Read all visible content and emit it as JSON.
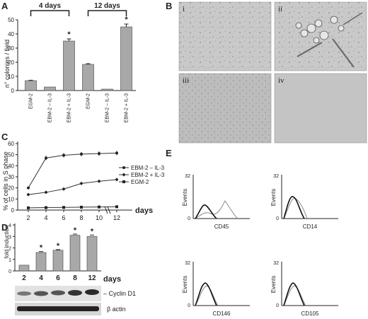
{
  "panels": {
    "A": "A",
    "B": "B",
    "C": "C",
    "D": "D",
    "E": "E"
  },
  "chart_data": [
    {
      "panel": "A",
      "type": "bar",
      "groups": [
        {
          "label": "4 days"
        },
        {
          "label": "12 days"
        }
      ],
      "categories": [
        "EGM-2",
        "EBM-2 – IL-3",
        "EBM-2 + IL-3",
        "EGM-2",
        "EBM-2 – IL-3",
        "EBM-2 + IL-3"
      ],
      "values": [
        7,
        2.5,
        35,
        18.5,
        1,
        45
      ],
      "errors": [
        0.3,
        0,
        1.5,
        0.5,
        0,
        2
      ],
      "significant": [
        false,
        false,
        true,
        false,
        false,
        true
      ],
      "star": "*",
      "ylabel": "n° colonies / field",
      "ylim": [
        0,
        50
      ],
      "yticks": [
        0,
        10,
        20,
        30,
        40,
        50
      ]
    },
    {
      "panel": "C",
      "type": "line",
      "x": [
        2,
        4,
        6,
        8,
        10,
        12
      ],
      "xticks": [
        "2",
        "4",
        "6",
        "8",
        "10",
        "12"
      ],
      "xunit": "days",
      "series": [
        {
          "name": "EBM-2 – IL-3",
          "marker": "circle",
          "values": [
            20,
            47,
            49.5,
            50.5,
            51,
            51.5
          ]
        },
        {
          "name": "EBM-2 + IL-3",
          "marker": "diamond",
          "values": [
            14,
            16,
            19,
            24,
            26,
            27.5
          ]
        },
        {
          "name": "EGM-2",
          "marker": "square",
          "values": [
            2,
            2.2,
            2.4,
            2.6,
            2.8,
            3
          ]
        }
      ],
      "ylabel": "% of cells in S phase",
      "ylim": [
        0,
        60
      ],
      "yticks": [
        0,
        10,
        20,
        30,
        40,
        50,
        60
      ],
      "axis_break": "//",
      "legend": "right"
    },
    {
      "panel": "D",
      "type": "bar",
      "categories": [
        "2",
        "4",
        "6",
        "8",
        "12"
      ],
      "xunit": "days",
      "values": [
        0.5,
        1.6,
        1.8,
        3.1,
        3.0
      ],
      "errors": [
        0,
        0.08,
        0.05,
        0.1,
        0.12
      ],
      "significant": [
        false,
        true,
        true,
        true,
        true
      ],
      "star": "*",
      "ylabel": "fold induction",
      "ylim": [
        0,
        4
      ],
      "yticks": [
        0,
        1,
        2,
        3,
        4
      ]
    },
    {
      "panel": "E",
      "type": "line",
      "histograms": [
        {
          "marker": "CD45",
          "ylabel": "Events",
          "ymax_label": "32",
          "y0_label": "0"
        },
        {
          "marker": "CD14",
          "ylabel": "Events",
          "ymax_label": "32",
          "y0_label": "0"
        },
        {
          "marker": "CD146",
          "ylabel": "Events",
          "ymax_label": "32",
          "y0_label": "0"
        },
        {
          "marker": "CD105",
          "ylabel": "Events",
          "ymax_label": "32",
          "y0_label": "0"
        }
      ]
    }
  ],
  "micrographs": [
    "i",
    "ii",
    "iii",
    "iv"
  ],
  "blot": {
    "rows": [
      "– Cyclin D1",
      "β actin"
    ]
  }
}
